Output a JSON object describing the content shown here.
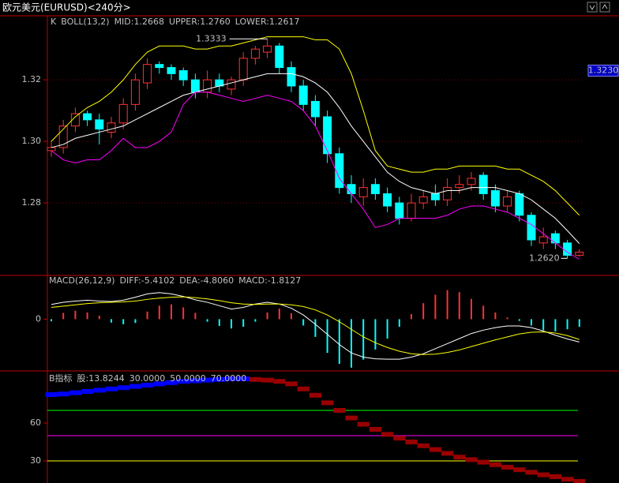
{
  "header": {
    "title": "欧元美元(EURUSD)<240分>"
  },
  "chart_data": [
    {
      "type": "candlestick",
      "header": [
        "K",
        "BOLL(13,2)"
      ],
      "open": [
        1.297,
        1.298,
        1.305,
        1.309,
        1.307,
        1.303,
        1.306,
        1.312,
        1.319,
        1.325,
        1.324,
        1.323,
        1.32,
        1.316,
        1.32,
        1.317,
        1.32,
        1.327,
        1.329,
        1.331,
        1.324,
        1.318,
        1.313,
        1.308,
        1.296,
        1.286,
        1.282,
        1.286,
        1.283,
        1.28,
        1.275,
        1.28,
        1.283,
        1.281,
        1.285,
        1.286,
        1.289,
        1.284,
        1.279,
        1.283,
        1.276,
        1.267,
        1.27,
        1.267,
        1.263
      ],
      "high": [
        1.3,
        1.307,
        1.311,
        1.31,
        1.309,
        1.308,
        1.314,
        1.322,
        1.327,
        1.326,
        1.325,
        1.324,
        1.322,
        1.323,
        1.322,
        1.321,
        1.329,
        1.331,
        1.3333,
        1.332,
        1.326,
        1.32,
        1.315,
        1.31,
        1.298,
        1.289,
        1.288,
        1.288,
        1.285,
        1.282,
        1.283,
        1.284,
        1.286,
        1.288,
        1.289,
        1.29,
        1.29,
        1.286,
        1.284,
        1.284,
        1.277,
        1.272,
        1.271,
        1.268,
        1.265
      ],
      "low": [
        1.295,
        1.296,
        1.303,
        1.305,
        1.299,
        1.301,
        1.304,
        1.31,
        1.317,
        1.322,
        1.32,
        1.318,
        1.314,
        1.314,
        1.316,
        1.315,
        1.318,
        1.325,
        1.327,
        1.322,
        1.316,
        1.31,
        1.305,
        1.293,
        1.283,
        1.28,
        1.279,
        1.281,
        1.277,
        1.273,
        1.274,
        1.278,
        1.279,
        1.279,
        1.283,
        1.284,
        1.281,
        1.277,
        1.277,
        1.274,
        1.266,
        1.265,
        1.265,
        1.262,
        1.2625
      ],
      "close": [
        1.298,
        1.305,
        1.309,
        1.307,
        1.304,
        1.306,
        1.312,
        1.32,
        1.325,
        1.324,
        1.322,
        1.32,
        1.316,
        1.32,
        1.318,
        1.32,
        1.327,
        1.33,
        1.331,
        1.324,
        1.318,
        1.312,
        1.308,
        1.296,
        1.285,
        1.283,
        1.285,
        1.283,
        1.279,
        1.275,
        1.28,
        1.282,
        1.281,
        1.285,
        1.286,
        1.288,
        1.283,
        1.279,
        1.282,
        1.276,
        1.268,
        1.269,
        1.267,
        1.263,
        1.264
      ],
      "up_color": "#ff3232",
      "down_color": "#00ffff",
      "series": [
        {
          "name": "MID:1.2668",
          "color": "#ffffff",
          "values": [
            1.298,
            1.299,
            1.301,
            1.302,
            1.303,
            1.304,
            1.305,
            1.307,
            1.309,
            1.311,
            1.313,
            1.315,
            1.316,
            1.317,
            1.318,
            1.319,
            1.32,
            1.321,
            1.322,
            1.322,
            1.322,
            1.321,
            1.319,
            1.316,
            1.311,
            1.305,
            1.3,
            1.295,
            1.29,
            1.287,
            1.285,
            1.284,
            1.283,
            1.284,
            1.284,
            1.285,
            1.285,
            1.285,
            1.284,
            1.283,
            1.281,
            1.278,
            1.275,
            1.271,
            1.2668
          ]
        },
        {
          "name": "UPPER:1.2760",
          "color": "#ffff00",
          "values": [
            1.3,
            1.304,
            1.308,
            1.311,
            1.313,
            1.316,
            1.32,
            1.325,
            1.329,
            1.331,
            1.331,
            1.331,
            1.33,
            1.33,
            1.331,
            1.331,
            1.332,
            1.333,
            1.334,
            1.334,
            1.334,
            1.334,
            1.333,
            1.333,
            1.33,
            1.322,
            1.31,
            1.297,
            1.292,
            1.291,
            1.29,
            1.29,
            1.291,
            1.291,
            1.292,
            1.292,
            1.292,
            1.292,
            1.291,
            1.291,
            1.289,
            1.287,
            1.284,
            1.28,
            1.276
          ]
        },
        {
          "name": "LOWER:1.2617",
          "color": "#ff00ff",
          "values": [
            1.297,
            1.294,
            1.293,
            1.294,
            1.294,
            1.297,
            1.301,
            1.298,
            1.298,
            1.3,
            1.303,
            1.312,
            1.316,
            1.316,
            1.315,
            1.314,
            1.313,
            1.314,
            1.315,
            1.314,
            1.313,
            1.31,
            1.305,
            1.297,
            1.288,
            1.283,
            1.278,
            1.272,
            1.273,
            1.275,
            1.275,
            1.275,
            1.275,
            1.276,
            1.278,
            1.279,
            1.279,
            1.278,
            1.277,
            1.275,
            1.273,
            1.27,
            1.267,
            1.264,
            1.2617
          ]
        }
      ],
      "ylim": [
        1.2567,
        1.3403
      ],
      "yticks": [
        1.32,
        {
          "value": 1.3,
          "label": "1.30"
        },
        1.28
      ],
      "grid": true,
      "high_mark": 1.3333,
      "low_mark": {
        "value": 1.262,
        "label": "1.2620"
      },
      "cursor_price": {
        "value": 1.323,
        "label": "1.3230"
      }
    },
    {
      "type": "macd",
      "header": "MACD(26,12,9)",
      "series": [
        {
          "name": "DIFF:-5.4102",
          "color": "#ffffff",
          "values": [
            3.5,
            4.0,
            4.3,
            4.5,
            4.3,
            4.2,
            4.5,
            5.2,
            6.0,
            6.3,
            6.0,
            5.4,
            4.6,
            4.0,
            3.2,
            2.4,
            2.8,
            3.6,
            4.0,
            3.6,
            2.6,
            1.0,
            -1.2,
            -3.6,
            -6.0,
            -8.0,
            -9.0,
            -9.4,
            -9.5,
            -9.5,
            -9.0,
            -8.2,
            -7.0,
            -5.8,
            -4.6,
            -3.4,
            -2.6,
            -2.0,
            -1.6,
            -1.6,
            -2.0,
            -2.8,
            -3.8,
            -4.7,
            -5.4102
          ]
        },
        {
          "name": "DEA:-4.8060",
          "color": "#ffff00",
          "values": [
            2.8,
            3.1,
            3.4,
            3.7,
            3.9,
            4.0,
            4.1,
            4.3,
            4.7,
            5.0,
            5.2,
            5.3,
            5.1,
            4.8,
            4.4,
            3.9,
            3.6,
            3.5,
            3.6,
            3.6,
            3.4,
            3.0,
            2.2,
            1.0,
            -0.6,
            -2.4,
            -4.2,
            -5.6,
            -6.7,
            -7.6,
            -8.2,
            -8.4,
            -8.3,
            -7.9,
            -7.3,
            -6.5,
            -5.7,
            -4.9,
            -4.2,
            -3.5,
            -3.1,
            -3.0,
            -3.3,
            -3.9,
            -4.806
          ]
        },
        {
          "name": "MACD:-1.8127",
          "color": "#c0c0c0",
          "style": "histogram",
          "up_color": "#ff3232",
          "down_color": "#00ffff",
          "values": [
            -0.5,
            1.5,
            2.0,
            1.6,
            0.8,
            -0.8,
            -1.2,
            -0.9,
            1.8,
            3.2,
            3.5,
            2.8,
            1.5,
            -0.6,
            -1.6,
            -2.2,
            -1.8,
            -0.6,
            1.6,
            2.5,
            1.4,
            -1.5,
            -4.2,
            -8.0,
            -10.6,
            -11.5,
            -9.6,
            -7.2,
            -4.6,
            -1.8,
            1.2,
            3.8,
            5.8,
            6.9,
            6.4,
            4.8,
            3.2,
            1.6,
            0.4,
            -0.4,
            -1.5,
            -2.6,
            -2.9,
            -2.4,
            -1.8127
          ]
        }
      ],
      "ylim": [
        -11.9,
        10
      ],
      "yticks": [
        0
      ]
    },
    {
      "type": "line",
      "header": "B指标",
      "series": [
        {
          "name": "股:13.8244",
          "color": "#0000ff",
          "falling_color": "#990000",
          "values": [
            82.5,
            83,
            84,
            85,
            86,
            87,
            88,
            89,
            90,
            91,
            92,
            93,
            93.5,
            94,
            94.5,
            95,
            95,
            94.5,
            94,
            93,
            91,
            87,
            82,
            76,
            70,
            64,
            59,
            55,
            51,
            48,
            45,
            42,
            39,
            36,
            33,
            31,
            29,
            27,
            25,
            23,
            21,
            19,
            17.5,
            15.5,
            13.8244
          ]
        }
      ],
      "ref_lines": [
        {
          "value": 30,
          "label": "30.0000",
          "color": "#ffff00"
        },
        {
          "value": 50,
          "label": "50.0000",
          "color": "#ff00ff"
        },
        {
          "value": 70,
          "label": "70.0000",
          "color": "#00ff00"
        }
      ],
      "ylim": [
        12.5,
        100
      ],
      "yticks": [
        60,
        30
      ]
    }
  ]
}
